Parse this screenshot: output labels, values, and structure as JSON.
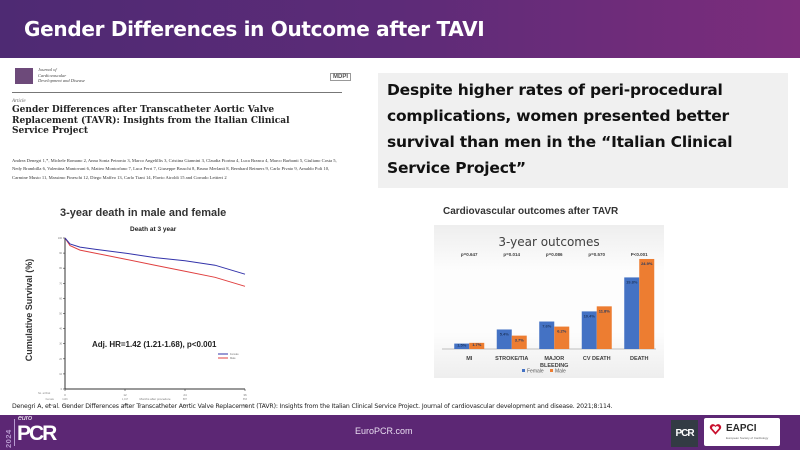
{
  "header": {
    "title": "Gender Differences in Outcome after TAVI"
  },
  "paper": {
    "journal": [
      "Journal of",
      "Cardiovascular",
      "Development and Disease"
    ],
    "publisher": "MDPI",
    "type": "Article",
    "title": "Gender Differences after Transcatheter Aortic Valve Replacement (TAVR): Insights from the Italian Clinical Service Project",
    "authors": "Andrea Denegri 1,*, Michele Romano 2, Anna Sonia Petronio 3, Marco Angelillis 3, Cristina Giannini 3, Claudia Fiorina 4, Luca Branca 4, Marco Barbanti 5, Giuliano Costa 5, Nedy Brambilla 6, Valentina Mantovani 6, Matteo Montorfano 7, Luca Ferri 7, Giuseppe Bruschi 8, Bruno Merlanti 8, Bernhard Reimers 9, Carlo Pivato 9, Arnaldo Poli 10, Carmine Musto 11, Massimo Fineschi 12, Diego Maffeo 13, Carlo Tiani 14, Flavio Airoldi 15 and Corrado Lettieri 2"
  },
  "callout": {
    "text": "Despite higher rates of peri-procedural complications, women presented better survival than men in the “Italian Clinical Service Project”"
  },
  "km_plot": {
    "title": "3-year death in male and female",
    "subtitle": "Death at 3 year",
    "ylabel": "Cumulative Survival (%)",
    "xlabel": "Months after procedure",
    "annotation": "Adj. HR=1.42 (1.21-1.68), p<0.001",
    "legend": [
      "Female",
      "Male"
    ],
    "colors": {
      "female": "#3333aa",
      "male": "#e04040"
    },
    "xticks": [
      "0",
      "12",
      "24",
      "36"
    ],
    "yticks": [
      "0",
      "10",
      "20",
      "30",
      "40",
      "50",
      "60",
      "70",
      "80",
      "90",
      "100"
    ],
    "at_risk_label": "No. at Risk",
    "at_risk": [
      {
        "group": "Female",
        "values": [
          "1146",
          "1,017",
          "887",
          "653"
        ]
      },
      {
        "group": "Male",
        "values": [
          "1073",
          "928",
          "853",
          "480"
        ]
      }
    ]
  },
  "chart_data": {
    "type": "bar",
    "title": "Cardiovascular outcomes after TAVR",
    "subtitle": "3-year outcomes",
    "categories": [
      "MI",
      "STROKE/TIA",
      "MAJOR BLEEDING",
      "CV DEATH",
      "DEATH"
    ],
    "p_values": [
      "p=0.647",
      "p=0.014",
      "p=0.086",
      "p=0.570",
      "P<0.001"
    ],
    "series": [
      {
        "name": "Female",
        "color": "#4472c4",
        "values": [
          1.5,
          5.4,
          7.6,
          10.4,
          19.8
        ]
      },
      {
        "name": "Male",
        "color": "#ed7d31",
        "values": [
          1.7,
          3.7,
          6.2,
          11.8,
          24.9
        ]
      }
    ],
    "ylim": [
      0,
      26
    ],
    "legend": "bottom",
    "grid": false
  },
  "citation": "Denegri A, et al. Gender Differences after Transcatheter Aortic Valve Replacement (TAVR): Insights from the Italian Clinical Service Project. Journal of cardiovascular development and disease. 2021;8:114.",
  "footer": {
    "year": "2024",
    "brand_small": "euro",
    "brand_big": "PCR",
    "website": "EuroPCR.com",
    "pcr_logo": "PCR",
    "eapci": "EAPCI",
    "eapci_sub": "European Society of Cardiology"
  }
}
